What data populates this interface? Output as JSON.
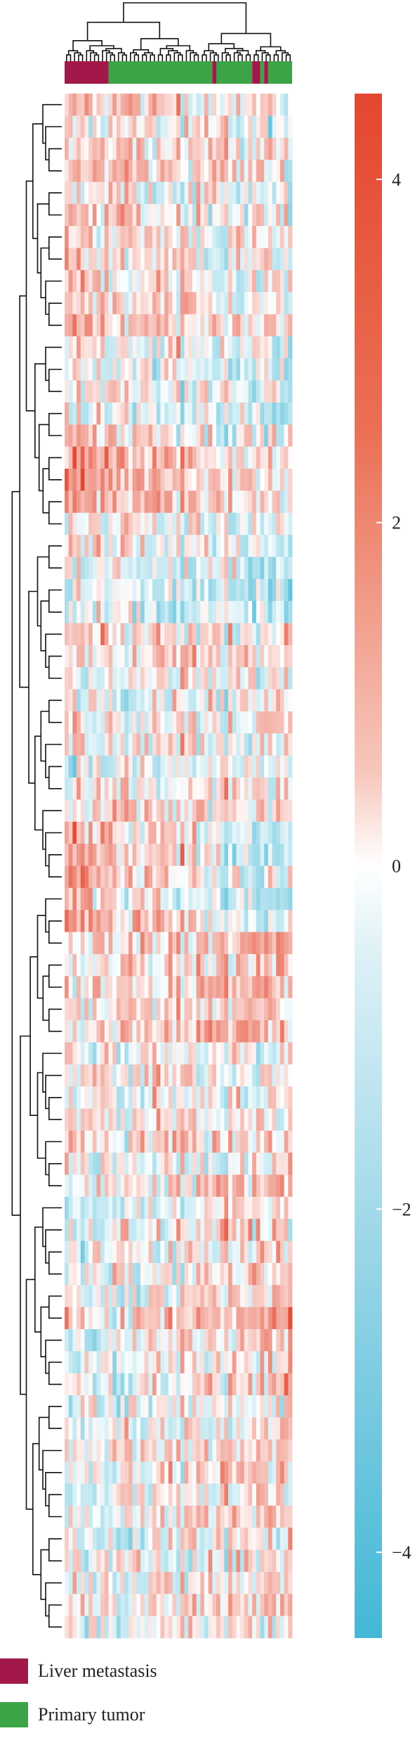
{
  "chart_data": {
    "type": "heatmap",
    "title": "",
    "colorbar": {
      "range": [
        -4.5,
        4.5
      ],
      "ticks": [
        4,
        2,
        0,
        -2,
        -4
      ],
      "tick_labels": [
        "4",
        "2",
        "0",
        "−2",
        "−4"
      ],
      "colors": {
        "high": "#e4472f",
        "mid": "#ffffff",
        "low": "#43b8d6"
      }
    },
    "annotation_bar": {
      "segments": [
        {
          "group": "Liver metastasis",
          "span": [
            0,
            11
          ]
        },
        {
          "group": "Primary tumor",
          "span": [
            11,
            37
          ]
        },
        {
          "group": "Liver metastasis",
          "span": [
            37,
            38
          ]
        },
        {
          "group": "Primary tumor",
          "span": [
            38,
            47
          ]
        },
        {
          "group": "Liver metastasis",
          "span": [
            47,
            49
          ]
        },
        {
          "group": "Primary tumor",
          "span": [
            49,
            50
          ]
        },
        {
          "group": "Liver metastasis",
          "span": [
            50,
            51
          ]
        },
        {
          "group": "Primary tumor",
          "span": [
            51,
            57
          ]
        }
      ]
    },
    "n_samples": 57,
    "n_genes": 70,
    "row_clusters": [
      {
        "rows": 6,
        "bias": [
          0.9,
          -0.2
        ]
      },
      {
        "rows": 5,
        "bias": [
          0.6,
          -0.4
        ]
      },
      {
        "rows": 4,
        "bias": [
          0.2,
          -1.0
        ]
      },
      {
        "rows": 4,
        "bias": [
          1.6,
          -0.1
        ]
      },
      {
        "rows": 5,
        "bias": [
          0.3,
          -0.6
        ]
      },
      {
        "rows": 6,
        "bias": [
          0.2,
          0.1
        ]
      },
      {
        "rows": 3,
        "bias": [
          -0.2,
          0.3
        ]
      },
      {
        "rows": 5,
        "bias": [
          1.6,
          -1.2
        ]
      },
      {
        "rows": 5,
        "bias": [
          0.2,
          1.4
        ]
      },
      {
        "rows": 6,
        "bias": [
          0.3,
          0.5
        ]
      },
      {
        "rows": 5,
        "bias": [
          -0.2,
          0.9
        ]
      },
      {
        "rows": 6,
        "bias": [
          -0.4,
          1.3
        ]
      },
      {
        "rows": 5,
        "bias": [
          -0.2,
          0.7
        ]
      },
      {
        "rows": 5,
        "bias": [
          -0.3,
          0.5
        ]
      }
    ]
  },
  "legend": [
    {
      "label": "Liver metastasis",
      "color": "#a3184a"
    },
    {
      "label": "Primary tumor",
      "color": "#3aa447"
    }
  ],
  "colors": {
    "liver_metastasis": "#a3184a",
    "primary_tumor": "#3aa447",
    "dendrogram": "#111111"
  }
}
